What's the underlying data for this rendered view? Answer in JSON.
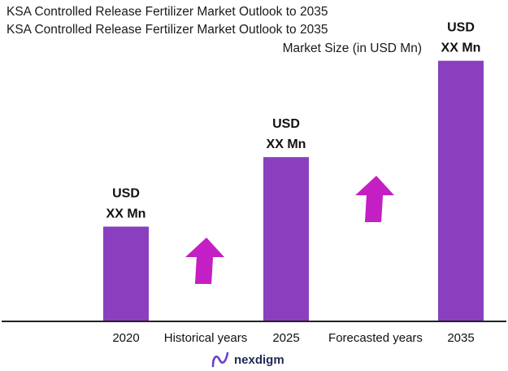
{
  "header": {
    "title_line1": "KSA Controlled Release Fertilizer Market Outlook to 2035",
    "title_line2": "KSA Controlled Release Fertilizer Market Outlook to 2035",
    "subtitle": "Market Size (in USD Mn)"
  },
  "chart_data": {
    "type": "bar",
    "title": "KSA Controlled Release Fertilizer Market Outlook to 2035",
    "ylabel": "Market Size (in USD Mn)",
    "categories": [
      "2020",
      "2025",
      "2035"
    ],
    "values": [
      120,
      208,
      330
    ],
    "data_labels": [
      [
        "USD",
        "XX Mn"
      ],
      [
        "USD",
        "XX Mn"
      ],
      [
        "USD",
        "XX Mn"
      ]
    ],
    "period_labels": [
      "Historical years",
      "Forecasted years"
    ],
    "ylim": [
      0,
      340
    ],
    "grid": false,
    "bar_color": "#8a3fbf",
    "arrow_color": "#c41fc4"
  },
  "logo": {
    "text": "nexdigm",
    "icon": "nexdigm-logo-icon"
  }
}
